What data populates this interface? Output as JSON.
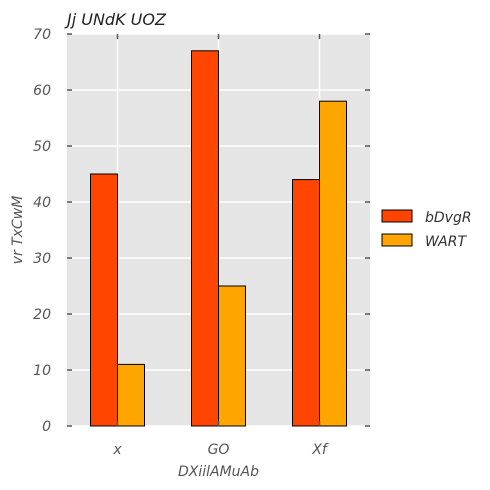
{
  "chart_data": {
    "type": "bar",
    "title": "Jj UNdK UOZ",
    "xlabel": "DXiilAMuAb",
    "ylabel": "vr TxCwM",
    "categories": [
      "x",
      "GO",
      "Xf"
    ],
    "series": [
      {
        "name": "bDvgR",
        "values": [
          45,
          67,
          44
        ],
        "color": "#ff4500"
      },
      {
        "name": "WART",
        "values": [
          11,
          25,
          58
        ],
        "color": "#ffa500"
      }
    ],
    "ylim": [
      0,
      70
    ],
    "yticks": [
      0,
      10,
      20,
      30,
      40,
      50,
      60,
      70
    ],
    "grid": true,
    "background": "#e5e5e5",
    "legend_position": "right"
  }
}
